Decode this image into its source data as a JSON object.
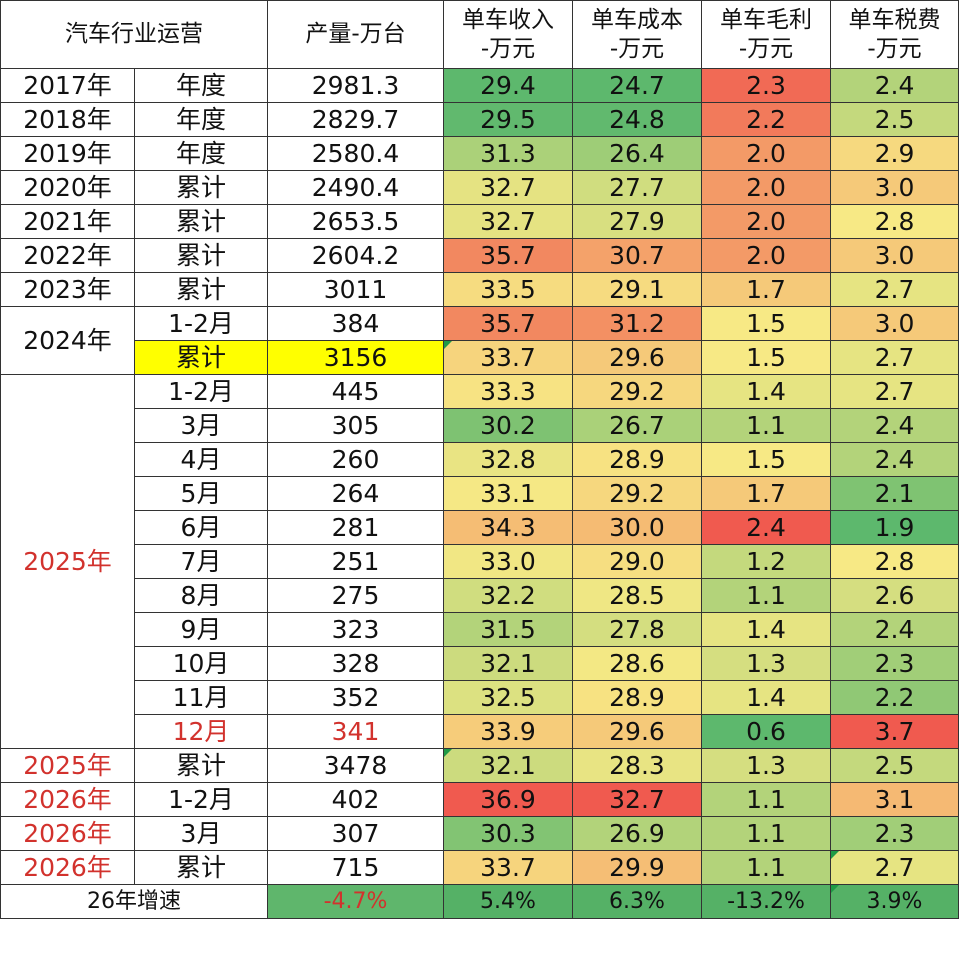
{
  "header": {
    "industry": "汽车行业运营",
    "production": "产量-万台",
    "revenue": [
      "单车收入",
      "-万元"
    ],
    "cost": [
      "单车成本",
      "-万元"
    ],
    "margin": [
      "单车毛利",
      "-万元"
    ],
    "tax": [
      "单车税费",
      "-万元"
    ]
  },
  "colors": {
    "scale_low": "#5db86d",
    "scale_mid": "#f7e985",
    "scale_high": "#f05a4f",
    "highlight": "#ffff00",
    "red_text": "#d2322d"
  },
  "rows": [
    {
      "year": "2017年",
      "period": "年度",
      "production": "2981.3",
      "revenue": "29.4",
      "cost": "24.7",
      "margin": "2.3",
      "tax": "2.4"
    },
    {
      "year": "2018年",
      "period": "年度",
      "production": "2829.7",
      "revenue": "29.5",
      "cost": "24.8",
      "margin": "2.2",
      "tax": "2.5"
    },
    {
      "year": "2019年",
      "period": "年度",
      "production": "2580.4",
      "revenue": "31.3",
      "cost": "26.4",
      "margin": "2.0",
      "tax": "2.9"
    },
    {
      "year": "2020年",
      "period": "累计",
      "production": "2490.4",
      "revenue": "32.7",
      "cost": "27.7",
      "margin": "2.0",
      "tax": "3.0"
    },
    {
      "year": "2021年",
      "period": "累计",
      "production": "2653.5",
      "revenue": "32.7",
      "cost": "27.9",
      "margin": "2.0",
      "tax": "2.8"
    },
    {
      "year": "2022年",
      "period": "累计",
      "production": "2604.2",
      "revenue": "35.7",
      "cost": "30.7",
      "margin": "2.0",
      "tax": "3.0"
    },
    {
      "year": "2023年",
      "period": "累计",
      "production": "3011",
      "revenue": "33.5",
      "cost": "29.1",
      "margin": "1.7",
      "tax": "2.7"
    },
    {
      "year": "2024年",
      "period": "1-2月",
      "production": "384",
      "revenue": "35.7",
      "cost": "31.2",
      "margin": "1.5",
      "tax": "3.0"
    },
    {
      "year": "",
      "period": "累计",
      "production": "3156",
      "revenue": "33.7",
      "cost": "29.6",
      "margin": "1.5",
      "tax": "2.7"
    },
    {
      "year": "2025年",
      "period": "1-2月",
      "production": "445",
      "revenue": "33.3",
      "cost": "29.2",
      "margin": "1.4",
      "tax": "2.7"
    },
    {
      "year": "",
      "period": "3月",
      "production": "305",
      "revenue": "30.2",
      "cost": "26.7",
      "margin": "1.1",
      "tax": "2.4"
    },
    {
      "year": "",
      "period": "4月",
      "production": "260",
      "revenue": "32.8",
      "cost": "28.9",
      "margin": "1.5",
      "tax": "2.4"
    },
    {
      "year": "",
      "period": "5月",
      "production": "264",
      "revenue": "33.1",
      "cost": "29.2",
      "margin": "1.7",
      "tax": "2.1"
    },
    {
      "year": "",
      "period": "6月",
      "production": "281",
      "revenue": "34.3",
      "cost": "30.0",
      "margin": "2.4",
      "tax": "1.9"
    },
    {
      "year": "",
      "period": "7月",
      "production": "251",
      "revenue": "33.0",
      "cost": "29.0",
      "margin": "1.2",
      "tax": "2.8"
    },
    {
      "year": "",
      "period": "8月",
      "production": "275",
      "revenue": "32.2",
      "cost": "28.5",
      "margin": "1.1",
      "tax": "2.6"
    },
    {
      "year": "",
      "period": "9月",
      "production": "323",
      "revenue": "31.5",
      "cost": "27.8",
      "margin": "1.4",
      "tax": "2.4"
    },
    {
      "year": "",
      "period": "10月",
      "production": "328",
      "revenue": "32.1",
      "cost": "28.6",
      "margin": "1.3",
      "tax": "2.3"
    },
    {
      "year": "",
      "period": "11月",
      "production": "352",
      "revenue": "32.5",
      "cost": "28.9",
      "margin": "1.4",
      "tax": "2.2"
    },
    {
      "year": "",
      "period": "12月",
      "production": "341",
      "revenue": "33.9",
      "cost": "29.6",
      "margin": "0.6",
      "tax": "3.7"
    },
    {
      "year": "2025年",
      "period": "累计",
      "production": "3478",
      "revenue": "32.1",
      "cost": "28.3",
      "margin": "1.3",
      "tax": "2.5"
    },
    {
      "year": "2026年",
      "period": "1-2月",
      "production": "402",
      "revenue": "36.9",
      "cost": "32.7",
      "margin": "1.1",
      "tax": "3.1"
    },
    {
      "year": "2026年",
      "period": "3月",
      "production": "307",
      "revenue": "30.3",
      "cost": "26.9",
      "margin": "1.1",
      "tax": "2.3"
    },
    {
      "year": "2026年",
      "period": "累计",
      "production": "715",
      "revenue": "33.7",
      "cost": "29.9",
      "margin": "1.1",
      "tax": "2.7"
    }
  ],
  "growth": {
    "label": "26年增速",
    "production": "-4.7%",
    "revenue": "5.4%",
    "cost": "6.3%",
    "margin": "-13.2%",
    "tax": "3.9%"
  },
  "chart_data": {
    "type": "table",
    "title": "",
    "columns": [
      "汽车行业运营",
      "产量-万台",
      "单车收入-万元",
      "单车成本-万元",
      "单车毛利-万元",
      "单车税费-万元"
    ],
    "rows": [
      [
        "2017年 年度",
        2981.3,
        29.4,
        24.7,
        2.3,
        2.4
      ],
      [
        "2018年 年度",
        2829.7,
        29.5,
        24.8,
        2.2,
        2.5
      ],
      [
        "2019年 年度",
        2580.4,
        31.3,
        26.4,
        2.0,
        2.9
      ],
      [
        "2020年 累计",
        2490.4,
        32.7,
        27.7,
        2.0,
        3.0
      ],
      [
        "2021年 累计",
        2653.5,
        32.7,
        27.9,
        2.0,
        2.8
      ],
      [
        "2022年 累计",
        2604.2,
        35.7,
        30.7,
        2.0,
        3.0
      ],
      [
        "2023年 累计",
        3011,
        33.5,
        29.1,
        1.7,
        2.7
      ],
      [
        "2024年 1-2月",
        384,
        35.7,
        31.2,
        1.5,
        3.0
      ],
      [
        "2024年 累计",
        3156,
        33.7,
        29.6,
        1.5,
        2.7
      ],
      [
        "2025年 1-2月",
        445,
        33.3,
        29.2,
        1.4,
        2.7
      ],
      [
        "2025年 3月",
        305,
        30.2,
        26.7,
        1.1,
        2.4
      ],
      [
        "2025年 4月",
        260,
        32.8,
        28.9,
        1.5,
        2.4
      ],
      [
        "2025年 5月",
        264,
        33.1,
        29.2,
        1.7,
        2.1
      ],
      [
        "2025年 6月",
        281,
        34.3,
        30.0,
        2.4,
        1.9
      ],
      [
        "2025年 7月",
        251,
        33.0,
        29.0,
        1.2,
        2.8
      ],
      [
        "2025年 8月",
        275,
        32.2,
        28.5,
        1.1,
        2.6
      ],
      [
        "2025年 9月",
        323,
        31.5,
        27.8,
        1.4,
        2.4
      ],
      [
        "2025年 10月",
        328,
        32.1,
        28.6,
        1.3,
        2.3
      ],
      [
        "2025年 11月",
        352,
        32.5,
        28.9,
        1.4,
        2.2
      ],
      [
        "2025年 12月",
        341,
        33.9,
        29.6,
        0.6,
        3.7
      ],
      [
        "2025年 累计",
        3478,
        32.1,
        28.3,
        1.3,
        2.5
      ],
      [
        "2026年 1-2月",
        402,
        36.9,
        32.7,
        1.1,
        3.1
      ],
      [
        "2026年 3月",
        307,
        30.3,
        26.9,
        1.1,
        2.3
      ],
      [
        "2026年 累计",
        715,
        33.7,
        29.9,
        1.1,
        2.7
      ],
      [
        "26年增速",
        "-4.7%",
        "5.4%",
        "6.3%",
        "-13.2%",
        "3.9%"
      ]
    ]
  }
}
